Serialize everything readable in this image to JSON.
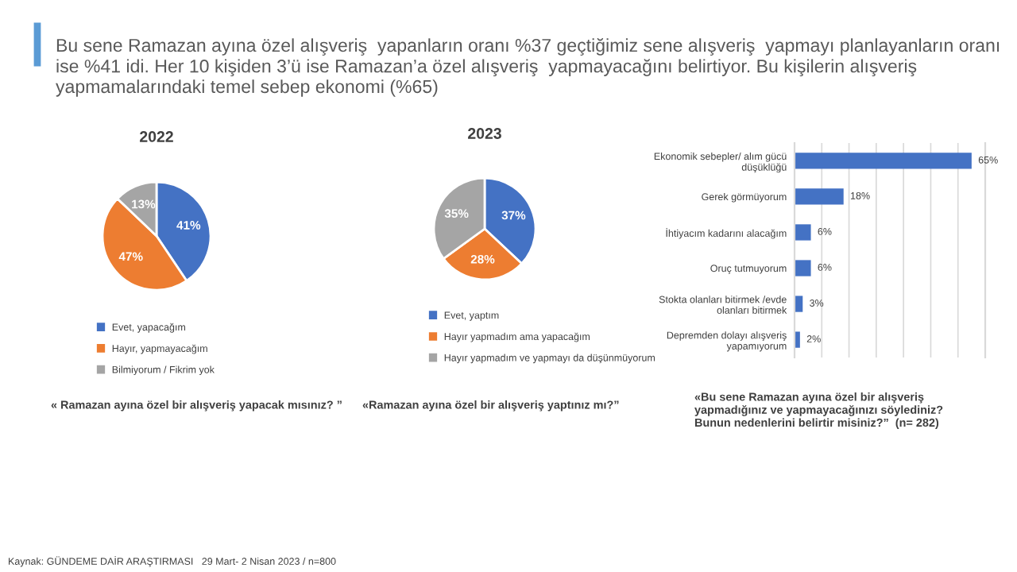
{
  "chart_data": [
    {
      "type": "pie",
      "title": "2022",
      "categories": [
        "Evet, yapacağım",
        "Hayır, yapmayacağım",
        "Bilmiyorum / Fikrim yok"
      ],
      "values": [
        41,
        47,
        13
      ],
      "value_labels": [
        "41%",
        "47%",
        "13%"
      ],
      "colors": [
        "#4472c4",
        "#ed7d31",
        "#a5a5a5"
      ],
      "legend": "bottom",
      "annotations": [
        "Bu sene Ramazan ayına özel alışveriş  yapanların oranı %37 geçtiğimiz sene alışveriş  yapmayı planlayanların oranı ise %41 idi. Her 10 kişiden 3’ü ise Ramazan’a özel alışveriş  yapmayacağını belirtiyor. Bu kişilerin alışveriş yapmamalarındaki temel sebep ekonomi (%65)",
        "« Ramazan ayına özel bir alışveriş yapacak mısınız? ”",
        "Kaynak: GÜNDEME DAİR ARAŞTIRMASI   29 Mart- 2 Nisan 2023 / n=800"
      ]
    },
    {
      "type": "pie",
      "title": "2023",
      "categories": [
        "Evet, yaptım",
        "Hayır yapmadım ama yapacağım",
        "Hayır yapmadım ve yapmayı da düşünmüyorum"
      ],
      "values": [
        37,
        28,
        35
      ],
      "value_labels": [
        "37%",
        "28%",
        "35%"
      ],
      "colors": [
        "#4472c4",
        "#ed7d31",
        "#a5a5a5"
      ],
      "legend": "bottom",
      "annotations": [
        "«Ramazan ayına özel bir alışveriş yaptınız mı?”"
      ]
    },
    {
      "type": "bar",
      "orientation": "horizontal",
      "categories": [
        "Ekonomik sebepler/ alım gücü\ndüşüklüğü",
        "Gerek görmüyorum",
        "İhtiyacım kadarını alacağım",
        "Oruç tutmuyorum",
        "Stokta olanları bitirmek /evde\nolanları bitirmek",
        "Depremden dolayı alışveriş\nyapamıyorum"
      ],
      "values": [
        65,
        18,
        6,
        6,
        3,
        2
      ],
      "value_labels": [
        "65%",
        "18%",
        "6%",
        "6%",
        "3%",
        "2%"
      ],
      "color": "#4472c4",
      "xlim": [
        0,
        70
      ],
      "xticks": [
        {
          "value": 0,
          "label": null
        },
        {
          "value": 10,
          "label": null
        },
        {
          "value": 20,
          "label": null
        },
        {
          "value": 30,
          "label": null
        },
        {
          "value": 40,
          "label": null
        },
        {
          "value": 50,
          "label": null
        },
        {
          "value": 60,
          "label": null
        }
      ],
      "grid": "x",
      "tick_labels": "y",
      "annotations": [
        "«Bu sene Ramazan ayına özel bir alışveriş\nyapmadığınız ve yapmayacağınızı söylediniz?\nBunun nedenlerini belirtir misiniz?”  (n= 282)"
      ]
    }
  ]
}
